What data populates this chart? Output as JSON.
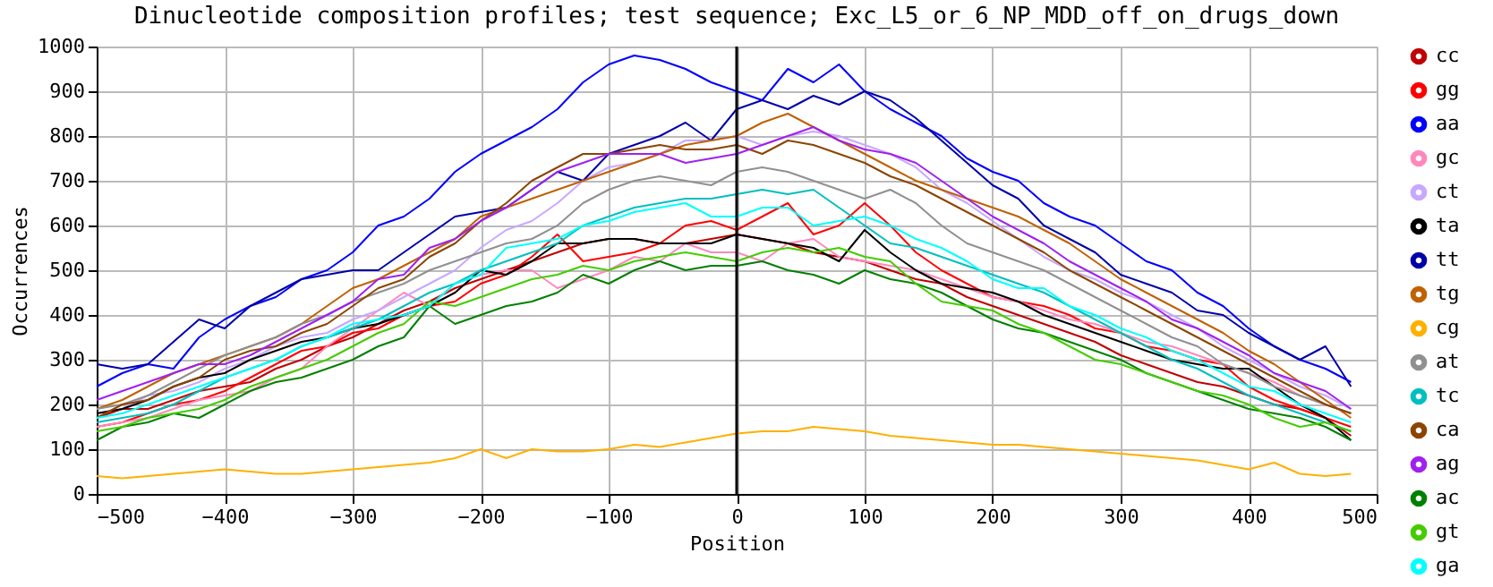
{
  "chart_data": {
    "type": "line",
    "title": "Dinucleotide composition profiles; test sequence; Exc_L5_or_6_NP_MDD_off_on_drugs_down",
    "xlabel": "Position",
    "ylabel": "Occurrences",
    "xlim": [
      -500,
      500
    ],
    "xticks": [
      -500,
      -400,
      -300,
      -200,
      -100,
      0,
      100,
      200,
      300,
      400,
      500
    ],
    "ylim": [
      0,
      1000
    ],
    "yticks": [
      0,
      100,
      200,
      300,
      400,
      500,
      600,
      700,
      800,
      900,
      1000
    ],
    "grid": true,
    "legend": "right",
    "marker": "none",
    "line_style": "solid",
    "ref_lines": [
      {
        "axis": "x",
        "value": 0,
        "color": "#000000"
      }
    ],
    "x": [
      -500,
      -480,
      -460,
      -440,
      -420,
      -400,
      -380,
      -360,
      -340,
      -320,
      -300,
      -280,
      -260,
      -240,
      -220,
      -200,
      -180,
      -160,
      -140,
      -120,
      -100,
      -80,
      -60,
      -40,
      -20,
      0,
      20,
      40,
      60,
      80,
      100,
      120,
      140,
      160,
      180,
      200,
      220,
      240,
      260,
      280,
      300,
      320,
      340,
      360,
      380,
      400,
      420,
      440,
      460,
      480
    ],
    "series": [
      {
        "name": "cc",
        "color": "#c00000",
        "values": [
          170,
          190,
          190,
          210,
          230,
          240,
          250,
          280,
          300,
          330,
          350,
          380,
          410,
          430,
          460,
          480,
          500,
          520,
          540,
          560,
          570,
          570,
          560,
          560,
          570,
          580,
          570,
          560,
          540,
          530,
          520,
          500,
          480,
          470,
          440,
          420,
          400,
          380,
          360,
          340,
          310,
          290,
          270,
          250,
          240,
          220,
          200,
          190,
          170,
          130
        ]
      },
      {
        "name": "gg",
        "color": "#ff0000",
        "values": [
          150,
          160,
          180,
          200,
          210,
          230,
          260,
          290,
          320,
          330,
          360,
          370,
          400,
          420,
          430,
          470,
          490,
          530,
          580,
          520,
          530,
          540,
          560,
          600,
          610,
          590,
          620,
          650,
          580,
          600,
          650,
          600,
          540,
          500,
          470,
          440,
          430,
          420,
          400,
          370,
          360,
          330,
          320,
          300,
          290,
          240,
          210,
          190,
          170,
          150
        ]
      },
      {
        "name": "aa",
        "color": "#0000ff",
        "values": [
          240,
          270,
          290,
          280,
          350,
          390,
          420,
          440,
          480,
          500,
          540,
          600,
          620,
          660,
          720,
          760,
          790,
          820,
          860,
          920,
          960,
          980,
          970,
          950,
          920,
          900,
          880,
          950,
          920,
          960,
          900,
          860,
          830,
          800,
          750,
          720,
          700,
          650,
          620,
          600,
          560,
          520,
          500,
          450,
          420,
          370,
          330,
          300,
          280,
          250
        ]
      },
      {
        "name": "gc",
        "color": "#ff88bb",
        "values": [
          150,
          160,
          170,
          190,
          210,
          220,
          230,
          260,
          280,
          330,
          370,
          410,
          450,
          420,
          470,
          490,
          500,
          500,
          460,
          480,
          500,
          530,
          520,
          560,
          540,
          540,
          520,
          560,
          570,
          530,
          520,
          510,
          500,
          480,
          460,
          440,
          430,
          410,
          390,
          380,
          360,
          340,
          330,
          310,
          290,
          270,
          250,
          220,
          200,
          180
        ]
      },
      {
        "name": "ct",
        "color": "#c8a8ff",
        "values": [
          180,
          190,
          220,
          230,
          250,
          280,
          300,
          330,
          350,
          360,
          390,
          410,
          440,
          470,
          500,
          550,
          590,
          610,
          650,
          700,
          730,
          740,
          760,
          790,
          790,
          800,
          780,
          800,
          810,
          800,
          780,
          760,
          730,
          680,
          650,
          610,
          570,
          530,
          500,
          480,
          450,
          430,
          400,
          370,
          330,
          300,
          270,
          240,
          220,
          190
        ]
      },
      {
        "name": "ta",
        "color": "#000000",
        "values": [
          180,
          190,
          210,
          240,
          260,
          270,
          300,
          320,
          340,
          350,
          370,
          380,
          400,
          420,
          450,
          500,
          490,
          520,
          560,
          560,
          570,
          570,
          560,
          560,
          560,
          580,
          570,
          560,
          550,
          520,
          590,
          540,
          500,
          470,
          460,
          450,
          430,
          400,
          380,
          360,
          340,
          320,
          300,
          290,
          280,
          280,
          240,
          200,
          170,
          120
        ]
      },
      {
        "name": "tt",
        "color": "#0000aa",
        "values": [
          290,
          280,
          290,
          340,
          390,
          370,
          420,
          450,
          480,
          490,
          500,
          500,
          540,
          580,
          620,
          630,
          640,
          680,
          720,
          700,
          760,
          780,
          800,
          830,
          790,
          860,
          880,
          860,
          890,
          870,
          900,
          880,
          840,
          790,
          740,
          690,
          660,
          600,
          570,
          540,
          490,
          470,
          450,
          410,
          400,
          360,
          330,
          300,
          330,
          240
        ]
      },
      {
        "name": "tg",
        "color": "#c06000",
        "values": [
          190,
          210,
          240,
          270,
          290,
          310,
          330,
          350,
          380,
          420,
          460,
          480,
          510,
          540,
          570,
          620,
          640,
          660,
          680,
          700,
          720,
          740,
          760,
          780,
          790,
          800,
          830,
          850,
          820,
          790,
          760,
          730,
          700,
          680,
          660,
          640,
          620,
          590,
          560,
          520,
          480,
          450,
          420,
          390,
          360,
          320,
          290,
          250,
          210,
          170
        ]
      },
      {
        "name": "cg",
        "color": "#ffb000",
        "values": [
          40,
          35,
          40,
          45,
          50,
          55,
          50,
          45,
          45,
          50,
          55,
          60,
          65,
          70,
          80,
          100,
          80,
          100,
          95,
          95,
          100,
          110,
          105,
          115,
          125,
          135,
          140,
          140,
          150,
          145,
          140,
          130,
          125,
          120,
          115,
          110,
          110,
          105,
          100,
          95,
          90,
          85,
          80,
          75,
          65,
          55,
          70,
          45,
          40,
          45
        ]
      },
      {
        "name": "at",
        "color": "#909090",
        "values": [
          190,
          200,
          220,
          250,
          280,
          310,
          330,
          350,
          380,
          400,
          430,
          450,
          470,
          500,
          520,
          540,
          560,
          570,
          600,
          650,
          680,
          700,
          710,
          700,
          690,
          720,
          730,
          720,
          700,
          680,
          660,
          680,
          650,
          600,
          560,
          540,
          520,
          500,
          470,
          440,
          410,
          380,
          350,
          330,
          290,
          270,
          240,
          220,
          200,
          180
        ]
      },
      {
        "name": "tc",
        "color": "#00bfbf",
        "values": [
          160,
          170,
          180,
          200,
          230,
          260,
          280,
          300,
          330,
          350,
          370,
          390,
          420,
          450,
          470,
          500,
          520,
          540,
          560,
          600,
          620,
          640,
          650,
          660,
          660,
          670,
          680,
          670,
          680,
          640,
          600,
          560,
          550,
          530,
          510,
          490,
          470,
          450,
          420,
          390,
          360,
          330,
          300,
          280,
          250,
          220,
          200,
          180,
          160,
          140
        ]
      },
      {
        "name": "ca",
        "color": "#8b4500",
        "values": [
          170,
          200,
          210,
          240,
          260,
          300,
          320,
          330,
          360,
          380,
          420,
          460,
          480,
          530,
          560,
          610,
          650,
          700,
          730,
          760,
          760,
          770,
          780,
          770,
          770,
          780,
          760,
          790,
          780,
          760,
          740,
          710,
          690,
          660,
          630,
          600,
          570,
          540,
          500,
          470,
          440,
          410,
          380,
          350,
          320,
          290,
          260,
          230,
          200,
          180
        ]
      },
      {
        "name": "ag",
        "color": "#a020f0",
        "values": [
          210,
          230,
          250,
          270,
          290,
          290,
          310,
          340,
          370,
          400,
          430,
          480,
          490,
          550,
          570,
          610,
          640,
          680,
          720,
          740,
          760,
          760,
          760,
          740,
          750,
          760,
          780,
          800,
          820,
          790,
          770,
          760,
          740,
          700,
          660,
          620,
          590,
          560,
          520,
          490,
          460,
          430,
          390,
          370,
          340,
          310,
          270,
          250,
          230,
          190
        ]
      },
      {
        "name": "ac",
        "color": "#008000",
        "values": [
          120,
          150,
          160,
          180,
          170,
          200,
          230,
          250,
          260,
          280,
          300,
          330,
          350,
          420,
          380,
          400,
          420,
          430,
          450,
          490,
          470,
          500,
          520,
          500,
          510,
          510,
          520,
          500,
          490,
          470,
          500,
          480,
          470,
          450,
          420,
          390,
          370,
          360,
          340,
          320,
          300,
          270,
          250,
          230,
          210,
          190,
          180,
          170,
          150,
          120
        ]
      },
      {
        "name": "gt",
        "color": "#44cc00",
        "values": [
          140,
          150,
          170,
          180,
          190,
          210,
          240,
          260,
          280,
          300,
          330,
          360,
          380,
          430,
          420,
          440,
          460,
          480,
          490,
          510,
          500,
          520,
          530,
          540,
          530,
          520,
          540,
          550,
          540,
          550,
          530,
          520,
          470,
          430,
          420,
          410,
          380,
          360,
          330,
          300,
          290,
          270,
          250,
          230,
          220,
          200,
          170,
          150,
          160,
          140
        ]
      },
      {
        "name": "ga",
        "color": "#00ffff",
        "values": [
          170,
          180,
          200,
          220,
          240,
          260,
          280,
          300,
          330,
          350,
          380,
          390,
          400,
          420,
          470,
          490,
          550,
          560,
          570,
          600,
          610,
          630,
          640,
          650,
          620,
          620,
          640,
          640,
          600,
          610,
          620,
          600,
          570,
          550,
          520,
          480,
          460,
          460,
          420,
          400,
          370,
          350,
          320,
          300,
          270,
          240,
          230,
          200,
          180,
          160
        ]
      }
    ]
  }
}
